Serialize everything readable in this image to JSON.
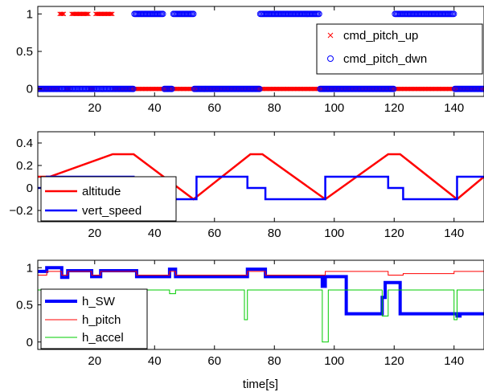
{
  "chart_data": [
    {
      "type": "scatter",
      "xlim": [
        1,
        150
      ],
      "ylim": [
        -0.1,
        1.1
      ],
      "xticks": [
        20,
        40,
        60,
        80,
        100,
        120,
        140
      ],
      "xtick_labels": [
        "20",
        "40",
        "60",
        "80",
        "100",
        "120",
        "140"
      ],
      "yticks": [
        0,
        0.5,
        1
      ],
      "ytick_labels": [
        "0",
        "0.5",
        "1"
      ],
      "grid": false,
      "legend_position": "top-right",
      "series": [
        {
          "name": "cmd_pitch_up",
          "marker": "x",
          "color": "#ff0000",
          "segments": [
            [
              8.3,
              10,
              1
            ],
            [
              1,
              8,
              0
            ],
            [
              10.3,
              12,
              0
            ],
            [
              12.3,
              18,
              1
            ],
            [
              18.3,
              20,
              0
            ],
            [
              20.3,
              26,
              1
            ],
            [
              26.3,
              33,
              0
            ],
            [
              33.3,
              150,
              0
            ]
          ]
        },
        {
          "name": "cmd_pitch_dwn",
          "marker": "o",
          "color": "#0000ff",
          "segments": [
            [
              1,
              33,
              0
            ],
            [
              33.3,
              43,
              1
            ],
            [
              43.3,
              46,
              0
            ],
            [
              46.3,
              53,
              1
            ],
            [
              53.3,
              75,
              0
            ],
            [
              75.3,
              95,
              1
            ],
            [
              95.3,
              120,
              0
            ],
            [
              120.3,
              140,
              1
            ],
            [
              140.3,
              150,
              0
            ]
          ]
        }
      ]
    },
    {
      "type": "line",
      "xlim": [
        1,
        150
      ],
      "ylim": [
        -0.3,
        0.5
      ],
      "xticks": [
        20,
        40,
        60,
        80,
        100,
        120,
        140
      ],
      "xtick_labels": [
        "20",
        "40",
        "60",
        "80",
        "100",
        "120",
        "140"
      ],
      "yticks": [
        -0.2,
        0,
        0.2,
        0.4
      ],
      "ytick_labels": [
        "−0.2",
        "0",
        "0.2",
        "0.4"
      ],
      "grid": false,
      "legend_position": "bottom-left",
      "series": [
        {
          "name": "altitude",
          "color": "#ff0000",
          "points": [
            [
              1,
              0.1
            ],
            [
              5,
              0.1
            ],
            [
              26,
              0.3
            ],
            [
              33,
              0.3
            ],
            [
              53,
              -0.1
            ],
            [
              72,
              0.3
            ],
            [
              76,
              0.3
            ],
            [
              97,
              -0.1
            ],
            [
              118,
              0.3
            ],
            [
              122,
              0.3
            ],
            [
              141,
              -0.1
            ],
            [
              150,
              0.1
            ]
          ]
        },
        {
          "name": "vert_speed",
          "color": "#0000ff",
          "points": [
            [
              1,
              0
            ],
            [
              4,
              0
            ],
            [
              4,
              0.1
            ],
            [
              33,
              0.1
            ],
            [
              33,
              0
            ],
            [
              45,
              0
            ],
            [
              45,
              -0.1
            ],
            [
              54,
              -0.1
            ],
            [
              54,
              0.1
            ],
            [
              71,
              0.1
            ],
            [
              71,
              0
            ],
            [
              77,
              0
            ],
            [
              77,
              -0.1
            ],
            [
              97,
              -0.1
            ],
            [
              97,
              0.1
            ],
            [
              118,
              0.1
            ],
            [
              118,
              0
            ],
            [
              123,
              0
            ],
            [
              123,
              -0.1
            ],
            [
              141,
              -0.1
            ],
            [
              141,
              0.1
            ],
            [
              150,
              0.1
            ]
          ]
        }
      ]
    },
    {
      "type": "line",
      "xlim": [
        1,
        150
      ],
      "xlabel": "time[s]",
      "ylim": [
        -0.1,
        1.1
      ],
      "xticks": [
        20,
        40,
        60,
        80,
        100,
        120,
        140
      ],
      "xtick_labels": [
        "20",
        "40",
        "60",
        "80",
        "100",
        "120",
        "140"
      ],
      "yticks": [
        0,
        0.5,
        1
      ],
      "ytick_labels": [
        "0",
        "0.5",
        "1"
      ],
      "grid": false,
      "legend_position": "bottom-left",
      "series": [
        {
          "name": "h_SW",
          "color": "#0000ff",
          "points": [
            [
              1,
              0.95
            ],
            [
              4,
              0.95
            ],
            [
              4,
              1.0
            ],
            [
              9,
              1.0
            ],
            [
              9,
              0.87
            ],
            [
              11,
              0.87
            ],
            [
              11,
              0.96
            ],
            [
              19,
              0.96
            ],
            [
              19,
              0.88
            ],
            [
              22,
              0.88
            ],
            [
              22,
              0.96
            ],
            [
              34,
              0.96
            ],
            [
              34,
              0.88
            ],
            [
              45,
              0.88
            ],
            [
              45,
              0.98
            ],
            [
              47,
              0.98
            ],
            [
              47,
              0.88
            ],
            [
              71,
              0.88
            ],
            [
              71,
              0.98
            ],
            [
              77,
              0.98
            ],
            [
              77,
              0.88
            ],
            [
              96,
              0.88
            ],
            [
              96,
              0.75
            ],
            [
              97,
              0.75
            ],
            [
              97,
              0.88
            ],
            [
              104,
              0.88
            ],
            [
              104,
              0.38
            ],
            [
              116,
              0.38
            ],
            [
              116,
              0.6
            ],
            [
              117,
              0.6
            ],
            [
              117,
              0.8
            ],
            [
              122,
              0.8
            ],
            [
              122,
              0.38
            ],
            [
              141,
              0.38
            ],
            [
              141,
              0.35
            ],
            [
              142,
              0.35
            ],
            [
              142,
              0.38
            ],
            [
              150,
              0.38
            ]
          ]
        },
        {
          "name": "h_pitch",
          "color": "#ff0000",
          "points": [
            [
              1,
              0.9
            ],
            [
              4,
              0.9
            ],
            [
              4,
              0.95
            ],
            [
              9,
              0.95
            ],
            [
              9,
              0.9
            ],
            [
              11,
              0.9
            ],
            [
              11,
              0.95
            ],
            [
              19,
              0.95
            ],
            [
              19,
              0.9
            ],
            [
              22,
              0.9
            ],
            [
              22,
              0.95
            ],
            [
              34,
              0.95
            ],
            [
              34,
              0.9
            ],
            [
              45,
              0.9
            ],
            [
              45,
              0.95
            ],
            [
              47,
              0.95
            ],
            [
              47,
              0.9
            ],
            [
              71,
              0.9
            ],
            [
              71,
              0.95
            ],
            [
              77,
              0.95
            ],
            [
              77,
              0.9
            ],
            [
              97,
              0.9
            ],
            [
              97,
              0.95
            ],
            [
              118,
              0.95
            ],
            [
              118,
              0.9
            ],
            [
              123,
              0.9
            ],
            [
              123,
              0.92
            ],
            [
              140,
              0.92
            ],
            [
              140,
              0.95
            ],
            [
              150,
              0.95
            ]
          ]
        },
        {
          "name": "h_accel",
          "color": "#00cc00",
          "points": [
            [
              1,
              0.7
            ],
            [
              45,
              0.7
            ],
            [
              45,
              0.65
            ],
            [
              47,
              0.65
            ],
            [
              47,
              0.7
            ],
            [
              70,
              0.7
            ],
            [
              70,
              0.3
            ],
            [
              71,
              0.3
            ],
            [
              71,
              0.7
            ],
            [
              96,
              0.7
            ],
            [
              96,
              0
            ],
            [
              98,
              0
            ],
            [
              98,
              0.7
            ],
            [
              116,
              0.7
            ],
            [
              116,
              0.35
            ],
            [
              118,
              0.35
            ],
            [
              118,
              0.7
            ],
            [
              140,
              0.7
            ],
            [
              140,
              0.3
            ],
            [
              141,
              0.3
            ],
            [
              141,
              0.7
            ],
            [
              150,
              0.7
            ]
          ]
        }
      ]
    }
  ]
}
